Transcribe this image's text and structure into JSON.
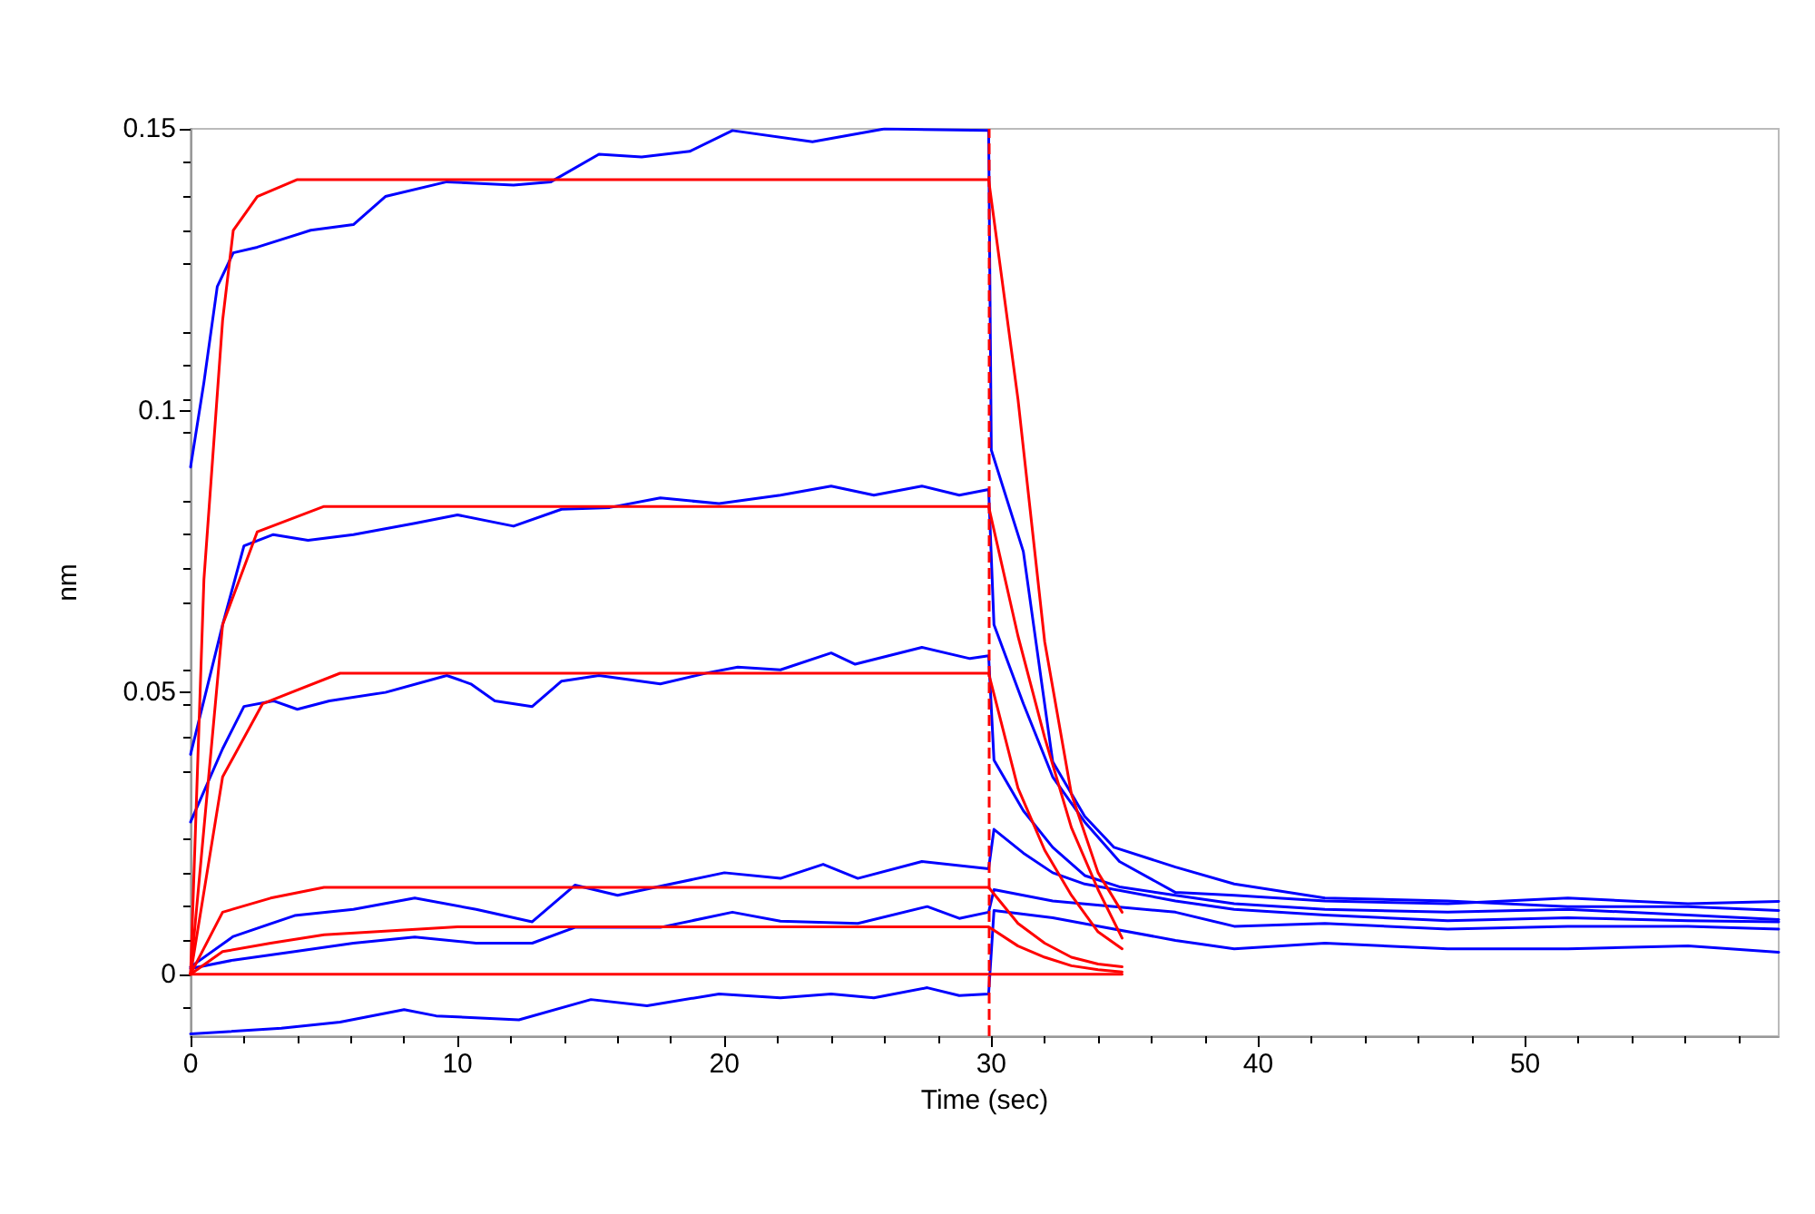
{
  "chart_data": {
    "type": "line",
    "xlabel": "Time (sec)",
    "ylabel": "nm",
    "xlim": [
      0,
      59.5
    ],
    "xticks": [
      0,
      10,
      20,
      30,
      40,
      50
    ],
    "ylim": [
      -0.011,
      0.15
    ],
    "yticks": [
      0,
      {
        "value": 0.05,
        "label": "0.05"
      },
      {
        "value": 0.1,
        "label": "0.1"
      },
      0.15
    ],
    "grid": false,
    "marker": "none",
    "line_style": "solid",
    "ref_lines": [
      {
        "axis": "x",
        "value": 29.9,
        "label": null,
        "color": "#ff0000",
        "line_style": "dashed"
      }
    ],
    "series": [
      {
        "color": "#0000ff",
        "x": [
          0,
          0.5,
          1,
          1.6,
          2.5,
          4.5,
          6.1,
          7.3,
          9.6,
          12.1,
          13.5,
          15.3,
          16.9,
          18.7,
          20.3,
          23.3,
          26,
          29.9,
          30,
          31.2,
          32.3,
          33.5,
          34.6,
          36.9,
          39.1,
          42.5,
          47.1,
          51.6,
          56.1,
          59.5
        ],
        "values": [
          0.09,
          0.105,
          0.122,
          0.128,
          0.129,
          0.132,
          0.133,
          0.138,
          0.1406,
          0.14,
          0.1406,
          0.1455,
          0.145,
          0.146,
          0.1497,
          0.1477,
          0.15,
          0.1497,
          0.093,
          0.075,
          0.0377,
          0.028,
          0.0225,
          0.019,
          0.016,
          0.0135,
          0.013,
          0.012,
          0.012,
          0.0113
        ]
      },
      {
        "color": "#0000ff",
        "x": [
          0,
          1.2,
          2,
          3.1,
          4.4,
          6.1,
          8.4,
          10,
          12.1,
          13.9,
          15.7,
          17.6,
          19.8,
          22.1,
          24,
          25.6,
          27.4,
          28.8,
          29.9,
          30.1,
          31.2,
          32.3,
          33.5,
          34.8,
          36.9,
          39.1,
          42.5,
          47.1,
          51.6,
          56.1,
          59.5
        ],
        "values": [
          0.039,
          0.062,
          0.076,
          0.078,
          0.077,
          0.078,
          0.08,
          0.0815,
          0.0795,
          0.0825,
          0.0828,
          0.0845,
          0.0835,
          0.085,
          0.0866,
          0.085,
          0.0866,
          0.085,
          0.086,
          0.062,
          0.048,
          0.035,
          0.027,
          0.02,
          0.0145,
          0.014,
          0.013,
          0.0125,
          0.0135,
          0.0125,
          0.0129
        ]
      },
      {
        "color": "#0000ff",
        "x": [
          0,
          1.2,
          2,
          3.1,
          4,
          5.2,
          7.3,
          9.6,
          10.5,
          11.4,
          12.8,
          13.9,
          15.3,
          17.6,
          19.4,
          20.5,
          22.1,
          24,
          24.9,
          27.4,
          29.2,
          29.9,
          30.1,
          31.2,
          32.3,
          33.5,
          34.8,
          36.9,
          39.1,
          42.5,
          47.1,
          51.6,
          56.1,
          59.5
        ],
        "values": [
          0.027,
          0.04,
          0.0475,
          0.0485,
          0.047,
          0.0485,
          0.05,
          0.053,
          0.0515,
          0.0485,
          0.0475,
          0.052,
          0.053,
          0.0515,
          0.0535,
          0.0545,
          0.054,
          0.057,
          0.055,
          0.058,
          0.056,
          0.0565,
          0.038,
          0.029,
          0.0225,
          0.0175,
          0.0155,
          0.014,
          0.0125,
          0.0115,
          0.011,
          0.0115,
          0.0105,
          0.0097
        ]
      },
      {
        "color": "#0000ff",
        "x": [
          0,
          1.6,
          3.9,
          6.1,
          8.4,
          10.7,
          12.8,
          14.4,
          16,
          18,
          20,
          22.1,
          23.7,
          25,
          27.4,
          29.9,
          30.1,
          31.2,
          32.3,
          33.5,
          36.9,
          39.1,
          42.5,
          47.1,
          51.6,
          56.1,
          59.5
        ],
        "values": [
          0.0013,
          0.0067,
          0.0104,
          0.0115,
          0.0135,
          0.0115,
          0.0093,
          0.0158,
          0.014,
          0.016,
          0.018,
          0.017,
          0.0195,
          0.017,
          0.02,
          0.0187,
          0.0257,
          0.0215,
          0.018,
          0.016,
          0.013,
          0.0115,
          0.0105,
          0.0095,
          0.01,
          0.0095,
          0.0093
        ]
      },
      {
        "color": "#0000ff",
        "x": [
          0,
          1.6,
          3.9,
          6.1,
          8.4,
          10.7,
          12.8,
          14.4,
          17.6,
          20.3,
          22.1,
          25,
          27.6,
          28.8,
          29.9,
          30.1,
          32.3,
          36.9,
          39.1,
          42.5,
          47.1,
          51.6,
          56.1,
          59.5
        ],
        "values": [
          0.001,
          0.0025,
          0.004,
          0.0055,
          0.0066,
          0.0055,
          0.0055,
          0.0083,
          0.0083,
          0.011,
          0.0094,
          0.009,
          0.012,
          0.0099,
          0.011,
          0.015,
          0.013,
          0.011,
          0.0085,
          0.009,
          0.008,
          0.0085,
          0.0085,
          0.008
        ]
      },
      {
        "color": "#0000ff",
        "x": [
          0,
          3.4,
          5.6,
          8,
          9.2,
          12.3,
          15,
          17.1,
          19.8,
          22.1,
          24,
          25.6,
          27.6,
          28.8,
          29.9,
          30.1,
          32.3,
          36.9,
          39.1,
          42.5,
          47.1,
          51.6,
          56.1,
          59.5
        ],
        "values": [
          -0.0106,
          -0.0096,
          -0.0085,
          -0.0063,
          -0.0074,
          -0.0081,
          -0.0045,
          -0.0056,
          -0.0035,
          -0.0042,
          -0.0035,
          -0.0042,
          -0.0024,
          -0.0038,
          -0.0035,
          0.0113,
          0.01,
          0.006,
          0.0045,
          0.0055,
          0.0045,
          0.0045,
          0.005,
          0.0039
        ]
      },
      {
        "color": "#ff0000",
        "x": [
          0,
          0.5,
          1.2,
          1.6,
          2.5,
          4,
          29.9,
          31,
          32,
          33,
          34,
          34.9
        ],
        "values": [
          0,
          0.07,
          0.116,
          0.132,
          0.138,
          0.141,
          0.141,
          0.102,
          0.059,
          0.032,
          0.018,
          0.011
        ]
      },
      {
        "color": "#ff0000",
        "x": [
          0,
          1.2,
          2.5,
          5,
          29.9,
          31,
          32,
          33,
          34,
          34.9
        ],
        "values": [
          0,
          0.062,
          0.0785,
          0.083,
          0.083,
          0.06,
          0.042,
          0.026,
          0.015,
          0.0064
        ]
      },
      {
        "color": "#ff0000",
        "x": [
          0,
          1.2,
          2.7,
          5.6,
          29.9,
          31,
          32,
          33,
          34,
          34.9
        ],
        "values": [
          0,
          0.035,
          0.048,
          0.0534,
          0.0534,
          0.033,
          0.022,
          0.014,
          0.0075,
          0.0045
        ]
      },
      {
        "color": "#ff0000",
        "x": [
          0,
          1.2,
          3,
          5,
          29.9,
          31,
          32,
          33,
          34,
          34.9
        ],
        "values": [
          0,
          0.011,
          0.0135,
          0.0154,
          0.0154,
          0.009,
          0.0055,
          0.003,
          0.0018,
          0.0013
        ]
      },
      {
        "color": "#ff0000",
        "x": [
          0,
          1.2,
          3,
          5,
          10,
          29.9,
          31,
          32,
          33,
          34,
          34.9
        ],
        "values": [
          0,
          0.004,
          0.0055,
          0.007,
          0.0084,
          0.0084,
          0.005,
          0.003,
          0.0015,
          0.0008,
          0.0004
        ]
      },
      {
        "color": "#ff0000",
        "x": [
          0,
          29.9,
          34.9
        ],
        "values": [
          0,
          0,
          0
        ]
      }
    ]
  }
}
